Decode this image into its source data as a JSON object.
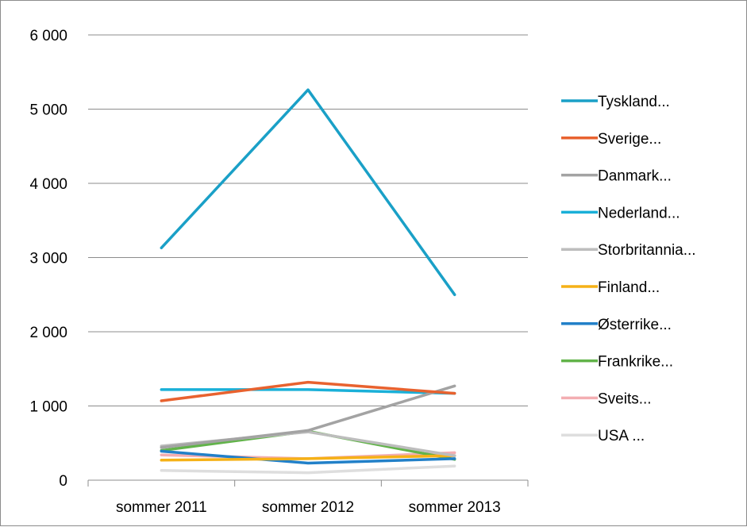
{
  "chart_data": {
    "type": "line",
    "title": "",
    "xlabel": "",
    "ylabel": "",
    "categories": [
      "sommer 2011",
      "sommer 2012",
      "sommer 2013"
    ],
    "ylim": [
      0,
      6000
    ],
    "yticks": [
      0,
      1000,
      2000,
      3000,
      4000,
      5000,
      6000
    ],
    "ytick_labels": [
      "0",
      "1 000",
      "2 000",
      "3 000",
      "4 000",
      "5 000",
      "6 000"
    ],
    "grid": true,
    "legend": "right",
    "series": [
      {
        "name": "Tyskland...",
        "color": "#1aa0c7",
        "values": [
          3130,
          5260,
          2500
        ]
      },
      {
        "name": "Sverige...",
        "color": "#e8622f",
        "values": [
          1070,
          1320,
          1170
        ]
      },
      {
        "name": "Danmark...",
        "color": "#a3a3a3",
        "values": [
          440,
          670,
          1270
        ]
      },
      {
        "name": "Nederland...",
        "color": "#1ab0d8",
        "values": [
          1220,
          1220,
          1170
        ]
      },
      {
        "name": "Storbritannia...",
        "color": "#bdbdbd",
        "values": [
          460,
          650,
          330
        ]
      },
      {
        "name": "Finland...",
        "color": "#f5b117",
        "values": [
          270,
          290,
          330
        ]
      },
      {
        "name": "Østerrike...",
        "color": "#2280c8",
        "values": [
          390,
          230,
          290
        ]
      },
      {
        "name": "Frankrike...",
        "color": "#62b34a",
        "values": [
          400,
          660,
          280
        ]
      },
      {
        "name": "Sveits...",
        "color": "#f3aeb2",
        "values": [
          340,
          290,
          370
        ]
      },
      {
        "name": "USA ...",
        "color": "#dedede",
        "values": [
          130,
          100,
          190
        ]
      }
    ]
  }
}
